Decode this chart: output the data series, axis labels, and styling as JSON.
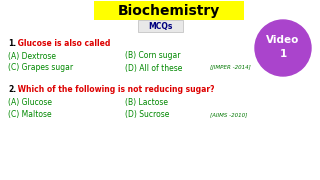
{
  "title": "Biochemistry",
  "subtitle": "MCQs",
  "bg_color": "#ffffff",
  "title_bg": "#ffff00",
  "title_color": "#000000",
  "subtitle_color": "#000080",
  "q1_number": "1.",
  "q1_text": " Glucose is also called",
  "q1_color": "#dd0000",
  "q1_num_color": "#000000",
  "q1_A": "(A) Dextrose",
  "q1_B": "(B) Corn sugar",
  "q1_C": "(C) Grapes sugar",
  "q1_D": "(D) All of these",
  "q1_ref": "[JIMPER -2014]",
  "q2_number": "2.",
  "q2_text": " Which of the following is not reducing sugar?",
  "q2_color": "#dd0000",
  "q2_num_color": "#000000",
  "q2_A": "(A) Glucose",
  "q2_B": "(B) Lactose",
  "q2_C": "(C) Maltose",
  "q2_D": "(D) Sucrose",
  "q2_ref": "[AIIMS -2010]",
  "option_color": "#008800",
  "ref_color": "#007700",
  "circle_color": "#aa44cc",
  "circle_text_color": "#ffffff",
  "video_text": "Video\n1"
}
